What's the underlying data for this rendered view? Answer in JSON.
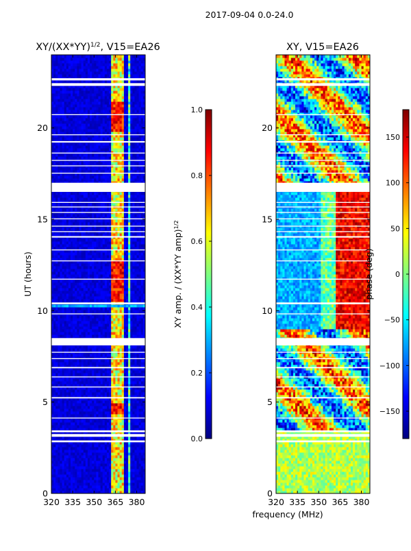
{
  "figure": {
    "suptitle": "2017-09-04 0.0-24.0",
    "xlabel": "frequency (MHz)"
  },
  "colors": {
    "jet": [
      "#00007f",
      "#0000ff",
      "#007fff",
      "#00ffff",
      "#7fff7f",
      "#ffff00",
      "#ff7f00",
      "#ff0000",
      "#7f0000"
    ],
    "gap": "#ffffff",
    "axis": "#000000"
  },
  "chart_data": [
    {
      "type": "heatmap",
      "title": "XY/(XX*YY)",
      "title_power": "1/2",
      "title_suffix": ", V15=EA26",
      "xlabel": "",
      "ylabel": "UT (hours)",
      "xlim": [
        320,
        386
      ],
      "ylim": [
        0,
        24
      ],
      "x_ticks": [
        320,
        335,
        350,
        365,
        380
      ],
      "x_tick_labels": [
        "320",
        "335",
        "350",
        "365",
        "380"
      ],
      "y_ticks": [
        0,
        5,
        10,
        15,
        20
      ],
      "y_tick_labels": [
        "0",
        "5",
        "10",
        "15",
        "20"
      ],
      "colorbar": {
        "label": "XY amp. / (XX*YY amp)",
        "label_power": "1/2",
        "vmin": 0.0,
        "vmax": 1.0,
        "ticks": [
          0.0,
          0.2,
          0.4,
          0.6,
          0.8,
          1.0
        ],
        "tick_labels": [
          "0.0",
          "0.2",
          "0.4",
          "0.6",
          "0.8",
          "1.0"
        ]
      },
      "bright_channels_mhz": [
        [
          362,
          366
        ],
        [
          367,
          371
        ],
        [
          374,
          376
        ]
      ],
      "data_gaps_ut": [
        [
          2.8,
          2.9
        ],
        [
          3.1,
          3.25
        ],
        [
          3.35,
          3.45
        ],
        [
          4.1,
          4.15
        ],
        [
          5.2,
          5.27
        ],
        [
          5.8,
          5.85
        ],
        [
          6.35,
          6.4
        ],
        [
          6.85,
          6.92
        ],
        [
          7.35,
          7.4
        ],
        [
          7.7,
          7.75
        ],
        [
          8.1,
          8.5
        ],
        [
          9.8,
          9.85
        ],
        [
          10.35,
          10.45
        ],
        [
          11.7,
          11.75
        ],
        [
          12.7,
          12.75
        ],
        [
          13.3,
          13.35
        ],
        [
          14.0,
          14.08
        ],
        [
          14.3,
          14.35
        ],
        [
          14.6,
          14.65
        ],
        [
          15.0,
          15.05
        ],
        [
          15.35,
          15.4
        ],
        [
          15.65,
          15.7
        ],
        [
          15.9,
          15.95
        ],
        [
          16.5,
          17.0
        ],
        [
          17.5,
          17.55
        ],
        [
          17.9,
          17.95
        ],
        [
          18.2,
          18.25
        ],
        [
          18.6,
          18.65
        ],
        [
          19.2,
          19.28
        ],
        [
          19.6,
          19.65
        ],
        [
          20.7,
          20.75
        ],
        [
          22.3,
          22.45
        ],
        [
          22.6,
          22.72
        ]
      ]
    },
    {
      "type": "heatmap",
      "title": "XY, V15=EA26",
      "xlabel": "",
      "ylabel": "",
      "xlim": [
        320,
        386
      ],
      "ylim": [
        0,
        24
      ],
      "x_ticks": [
        320,
        335,
        350,
        365,
        380
      ],
      "x_tick_labels": [
        "320",
        "335",
        "350",
        "365",
        "380"
      ],
      "y_ticks": [
        0,
        5,
        10,
        15,
        20
      ],
      "y_tick_labels": [
        "0",
        "5",
        "10",
        "15",
        "20"
      ],
      "colorbar": {
        "label": "phase (deg)",
        "vmin": -180,
        "vmax": 180,
        "ticks": [
          -150,
          -100,
          -50,
          0,
          50,
          100,
          150
        ],
        "tick_labels": [
          "−150",
          "−100",
          "−50",
          "0",
          "50",
          "100",
          "150"
        ]
      },
      "data_gaps_ut": [
        [
          2.8,
          2.9
        ],
        [
          3.1,
          3.25
        ],
        [
          3.35,
          3.45
        ],
        [
          4.1,
          4.15
        ],
        [
          5.2,
          5.27
        ],
        [
          5.8,
          5.85
        ],
        [
          6.35,
          6.4
        ],
        [
          6.85,
          6.92
        ],
        [
          7.35,
          7.4
        ],
        [
          7.7,
          7.75
        ],
        [
          8.1,
          8.5
        ],
        [
          9.8,
          9.85
        ],
        [
          10.35,
          10.45
        ],
        [
          11.7,
          11.75
        ],
        [
          12.7,
          12.75
        ],
        [
          13.3,
          13.35
        ],
        [
          14.0,
          14.08
        ],
        [
          14.3,
          14.35
        ],
        [
          14.6,
          14.65
        ],
        [
          15.0,
          15.05
        ],
        [
          15.35,
          15.4
        ],
        [
          15.65,
          15.7
        ],
        [
          15.9,
          15.95
        ],
        [
          16.5,
          17.0
        ],
        [
          17.5,
          17.55
        ],
        [
          17.9,
          17.95
        ],
        [
          18.2,
          18.25
        ],
        [
          18.6,
          18.65
        ],
        [
          19.2,
          19.28
        ],
        [
          19.6,
          19.65
        ],
        [
          20.7,
          20.75
        ],
        [
          22.3,
          22.45
        ],
        [
          22.6,
          22.72
        ]
      ]
    }
  ]
}
